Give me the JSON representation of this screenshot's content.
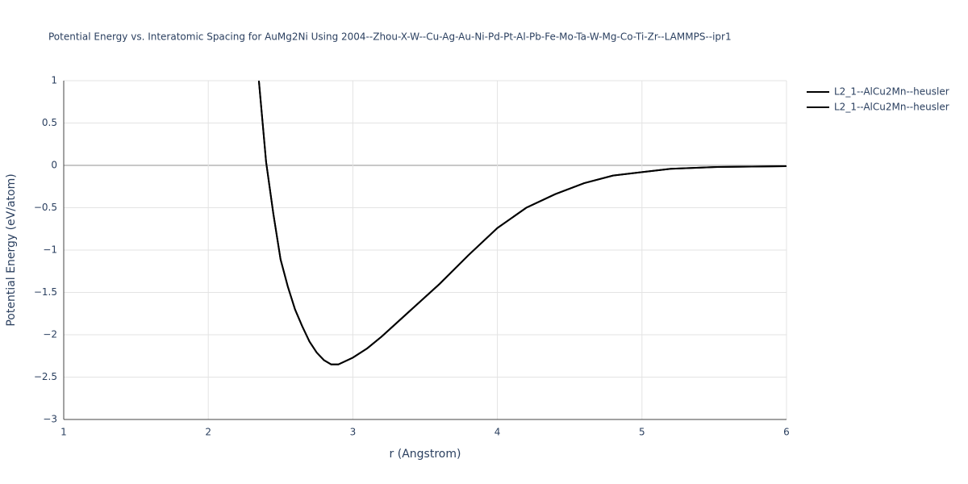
{
  "chart_data": {
    "type": "line",
    "title": "Potential Energy vs. Interatomic Spacing for AuMg2Ni Using 2004--Zhou-X-W--Cu-Ag-Au-Ni-Pd-Pt-Al-Pb-Fe-Mo-Ta-W-Mg-Co-Ti-Zr--LAMMPS--ipr1",
    "x_label": "r (Angstrom)",
    "y_label": "Potential Energy (eV/atom)",
    "x": [
      2.35,
      2.4,
      2.45,
      2.5,
      2.55,
      2.6,
      2.65,
      2.7,
      2.75,
      2.8,
      2.85,
      2.9,
      3.0,
      3.1,
      3.2,
      3.4,
      3.6,
      3.8,
      4.0,
      4.2,
      4.4,
      4.6,
      4.8,
      5.0,
      5.2,
      5.5,
      6.0
    ],
    "series": [
      {
        "name": "L2_1--AlCu2Mn--heusler",
        "color": "#000000",
        "values": [
          1,
          0.04,
          -0.57,
          -1.11,
          -1.43,
          -1.7,
          -1.9,
          -2.08,
          -2.21,
          -2.3,
          -2.35,
          -2.35,
          -2.27,
          -2.16,
          -2.02,
          -1.71,
          -1.4,
          -1.06,
          -0.74,
          -0.5,
          -0.34,
          -0.21,
          -0.12,
          -0.08,
          -0.04,
          -0.02,
          -0.01
        ]
      },
      {
        "name": "L2_1--AlCu2Mn--heusler",
        "color": "#000000",
        "values": [
          1,
          0.04,
          -0.57,
          -1.11,
          -1.43,
          -1.7,
          -1.9,
          -2.08,
          -2.21,
          -2.3,
          -2.35,
          -2.35,
          -2.27,
          -2.16,
          -2.02,
          -1.71,
          -1.4,
          -1.06,
          -0.74,
          -0.5,
          -0.34,
          -0.21,
          -0.12,
          -0.08,
          -0.04,
          -0.02,
          -0.01
        ]
      }
    ],
    "xlim": [
      1,
      6
    ],
    "xticks": [
      1,
      2,
      3,
      4,
      5,
      6
    ],
    "ylim": [
      -3,
      1
    ],
    "yticks": [
      {
        "value": -3,
        "label": "−3"
      },
      {
        "value": -2.5,
        "label": "−2.5"
      },
      {
        "value": -2,
        "label": "−2"
      },
      {
        "value": -1.5,
        "label": "−1.5"
      },
      {
        "value": -1,
        "label": "−1"
      },
      {
        "value": -0.5,
        "label": "−0.5"
      },
      0,
      0.5,
      1
    ],
    "grid": true,
    "legend": "right"
  }
}
